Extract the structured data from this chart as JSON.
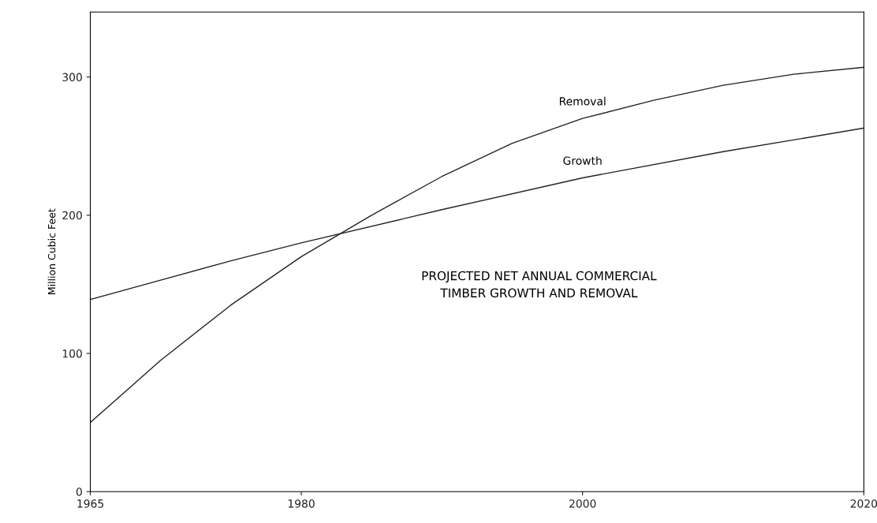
{
  "chart_data": {
    "type": "line",
    "ylabel": "Million Cubic Feet",
    "x": [
      1965,
      1970,
      1975,
      1980,
      1983,
      1985,
      1990,
      1995,
      2000,
      2005,
      2010,
      2015,
      2020
    ],
    "series": [
      {
        "name": "Removal",
        "color": "#222222",
        "values": [
          50,
          95,
          135,
          170,
          188,
          200,
          228,
          252,
          270,
          283,
          294,
          302,
          307
        ]
      },
      {
        "name": "Growth",
        "color": "#222222",
        "x": [
          1965,
          1970,
          1975,
          1980,
          1990,
          2000,
          2010,
          2020
        ],
        "values": [
          139,
          153,
          167,
          180,
          204,
          227,
          246,
          263
        ]
      }
    ],
    "annotations": [
      "PROJECTED NET ANNUAL COMMERCIAL\nTIMBER GROWTH AND REMOVAL"
    ],
    "xlim": [
      1965,
      2020
    ],
    "xticks": [
      1965,
      1980,
      2000,
      2020
    ],
    "ylim": [
      0,
      347
    ],
    "yticks": [
      0,
      100,
      200,
      300
    ],
    "grid": false,
    "legend": false,
    "marker": "none",
    "line_style": "solid"
  }
}
